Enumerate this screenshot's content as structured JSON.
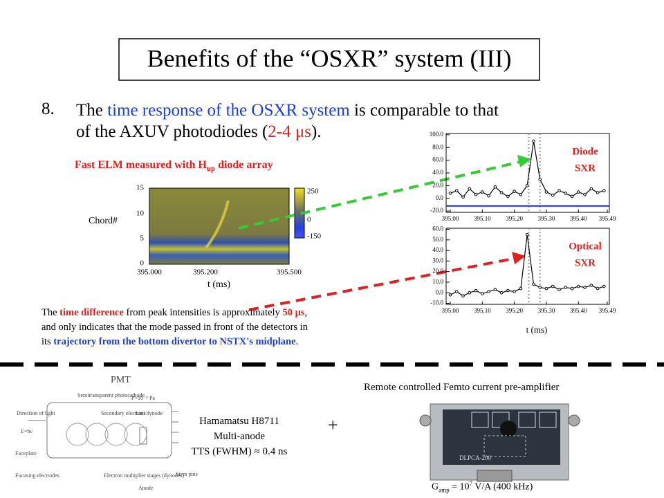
{
  "title": "Benefits of the “OSXR” system (III)",
  "point": {
    "number": "8.",
    "lines": [
      [
        {
          "text": "The "
        },
        {
          "text": "time response of the OSXR system",
          "color": "#1a3fd8"
        },
        {
          "text": " is comparable to that"
        }
      ],
      [
        {
          "text": "of the AXUV photodiodes ("
        },
        {
          "text": "2-4 μs",
          "color": "#e0201a"
        },
        {
          "text": ")."
        }
      ]
    ]
  },
  "heatmap": {
    "caption": "Fast ELM measured with H",
    "caption_sub": "up",
    "caption_end": " diode array",
    "ylabel": "Chord#",
    "yticks": [
      "15",
      "10",
      "5",
      "0"
    ],
    "xticks": [
      "395.000",
      "395.200",
      "395.500"
    ],
    "xlabel": "t (ms)",
    "colorbar_ticks": [
      "250",
      "0",
      "-150"
    ]
  },
  "time_plots": {
    "xlim": [
      395.0,
      395.49
    ],
    "xticks": [
      {
        "value": 395.0,
        "label": "395.00"
      },
      {
        "value": 395.1,
        "label": "395.10"
      },
      {
        "value": 395.2,
        "label": "395.20"
      },
      {
        "value": 395.3,
        "label": "395.30"
      },
      {
        "value": 395.4,
        "label": "395.40"
      },
      {
        "value": 395.49,
        "label": "395.49"
      }
    ],
    "xlabel": "t (ms)",
    "markers": [
      395.245,
      395.28
    ],
    "x": [
      395.0,
      395.02,
      395.04,
      395.06,
      395.08,
      395.1,
      395.12,
      395.14,
      395.16,
      395.18,
      395.2,
      395.22,
      395.24,
      395.26,
      395.28,
      395.3,
      395.32,
      395.34,
      395.36,
      395.38,
      395.4,
      395.42,
      395.44,
      395.46,
      395.48
    ],
    "panels": [
      {
        "label": [
          "Diode",
          "SXR"
        ],
        "ylim": [
          -22,
          102
        ],
        "yticks": [
          {
            "value": 100,
            "label": "100.0"
          },
          {
            "value": 80,
            "label": "80.0"
          },
          {
            "value": 60,
            "label": "60.0"
          },
          {
            "value": 40,
            "label": "40.0"
          },
          {
            "value": 20,
            "label": "20.0"
          },
          {
            "value": 0,
            "label": "0.0"
          },
          {
            "value": -20,
            "label": "-20.0"
          }
        ],
        "baseline": -12,
        "baseline_color": "#1a2fc0",
        "values": [
          8,
          12,
          2,
          15,
          6,
          10,
          4,
          18,
          9,
          3,
          11,
          6,
          20,
          90,
          30,
          10,
          5,
          12,
          8,
          3,
          10,
          6,
          15,
          9,
          12
        ]
      },
      {
        "label": [
          "Optical",
          "SXR"
        ],
        "ylim": [
          -11,
          61
        ],
        "yticks": [
          {
            "value": 60,
            "label": "60.0"
          },
          {
            "value": 50,
            "label": "50.0"
          },
          {
            "value": 40,
            "label": "40.0"
          },
          {
            "value": 30,
            "label": "30.0"
          },
          {
            "value": 20,
            "label": "20.0"
          },
          {
            "value": 10,
            "label": "10.0"
          },
          {
            "value": 0,
            "label": "0.0"
          },
          {
            "value": -10,
            "label": "-10.0"
          }
        ],
        "values": [
          -2,
          1,
          -3,
          0,
          2,
          -1,
          1,
          3,
          0,
          2,
          1,
          4,
          55,
          8,
          5,
          4,
          6,
          3,
          5,
          4,
          6,
          5,
          7,
          4,
          6
        ]
      }
    ]
  },
  "paragraph": [
    [
      {
        "text": "The "
      },
      {
        "text": "time difference",
        "color": "#e0201a",
        "bold": true
      },
      {
        "text": " from peak intensities is approximately "
      },
      {
        "text": "50 μs",
        "color": "#e0201a",
        "bold": true
      },
      {
        "text": ","
      }
    ],
    [
      {
        "text": "and only indicates that the mode passed in front of the detectors in"
      }
    ],
    [
      {
        "text": "its "
      },
      {
        "text": "trajectory from the bottom divertor to NSTX's midplane",
        "color": "#1a3fd8",
        "bold": true
      },
      {
        "text": "."
      }
    ]
  ],
  "pmt": {
    "title": "PMT",
    "labels": {
      "photocathode": "Semitransparent photocathode",
      "pressure": "P=10⁻⁴ Pa",
      "light": "Direction of light",
      "energy": "E=hν",
      "secondary": "Secondary electrons",
      "dynode": "Last dynode",
      "faceplate": "Faceplate",
      "focusing": "Focusing electrodes",
      "stages": "Electron multiplier stages (dynodes)",
      "anode": "Anode",
      "pins": "Stem pins"
    },
    "model": "Hamamatsu H8711",
    "type": "Multi-anode",
    "tts": "TTS (FWHM) ≈ 0.4 ns"
  },
  "plus": "+",
  "amplifier": {
    "caption": "Remote controlled Femto current pre-amplifier",
    "device": "DLPCA-200",
    "gain": "G",
    "gain_sub": "amp",
    "gain_mid": " = 10",
    "gain_sup": "7",
    "gain_end": " V/A (400 kHz)"
  }
}
